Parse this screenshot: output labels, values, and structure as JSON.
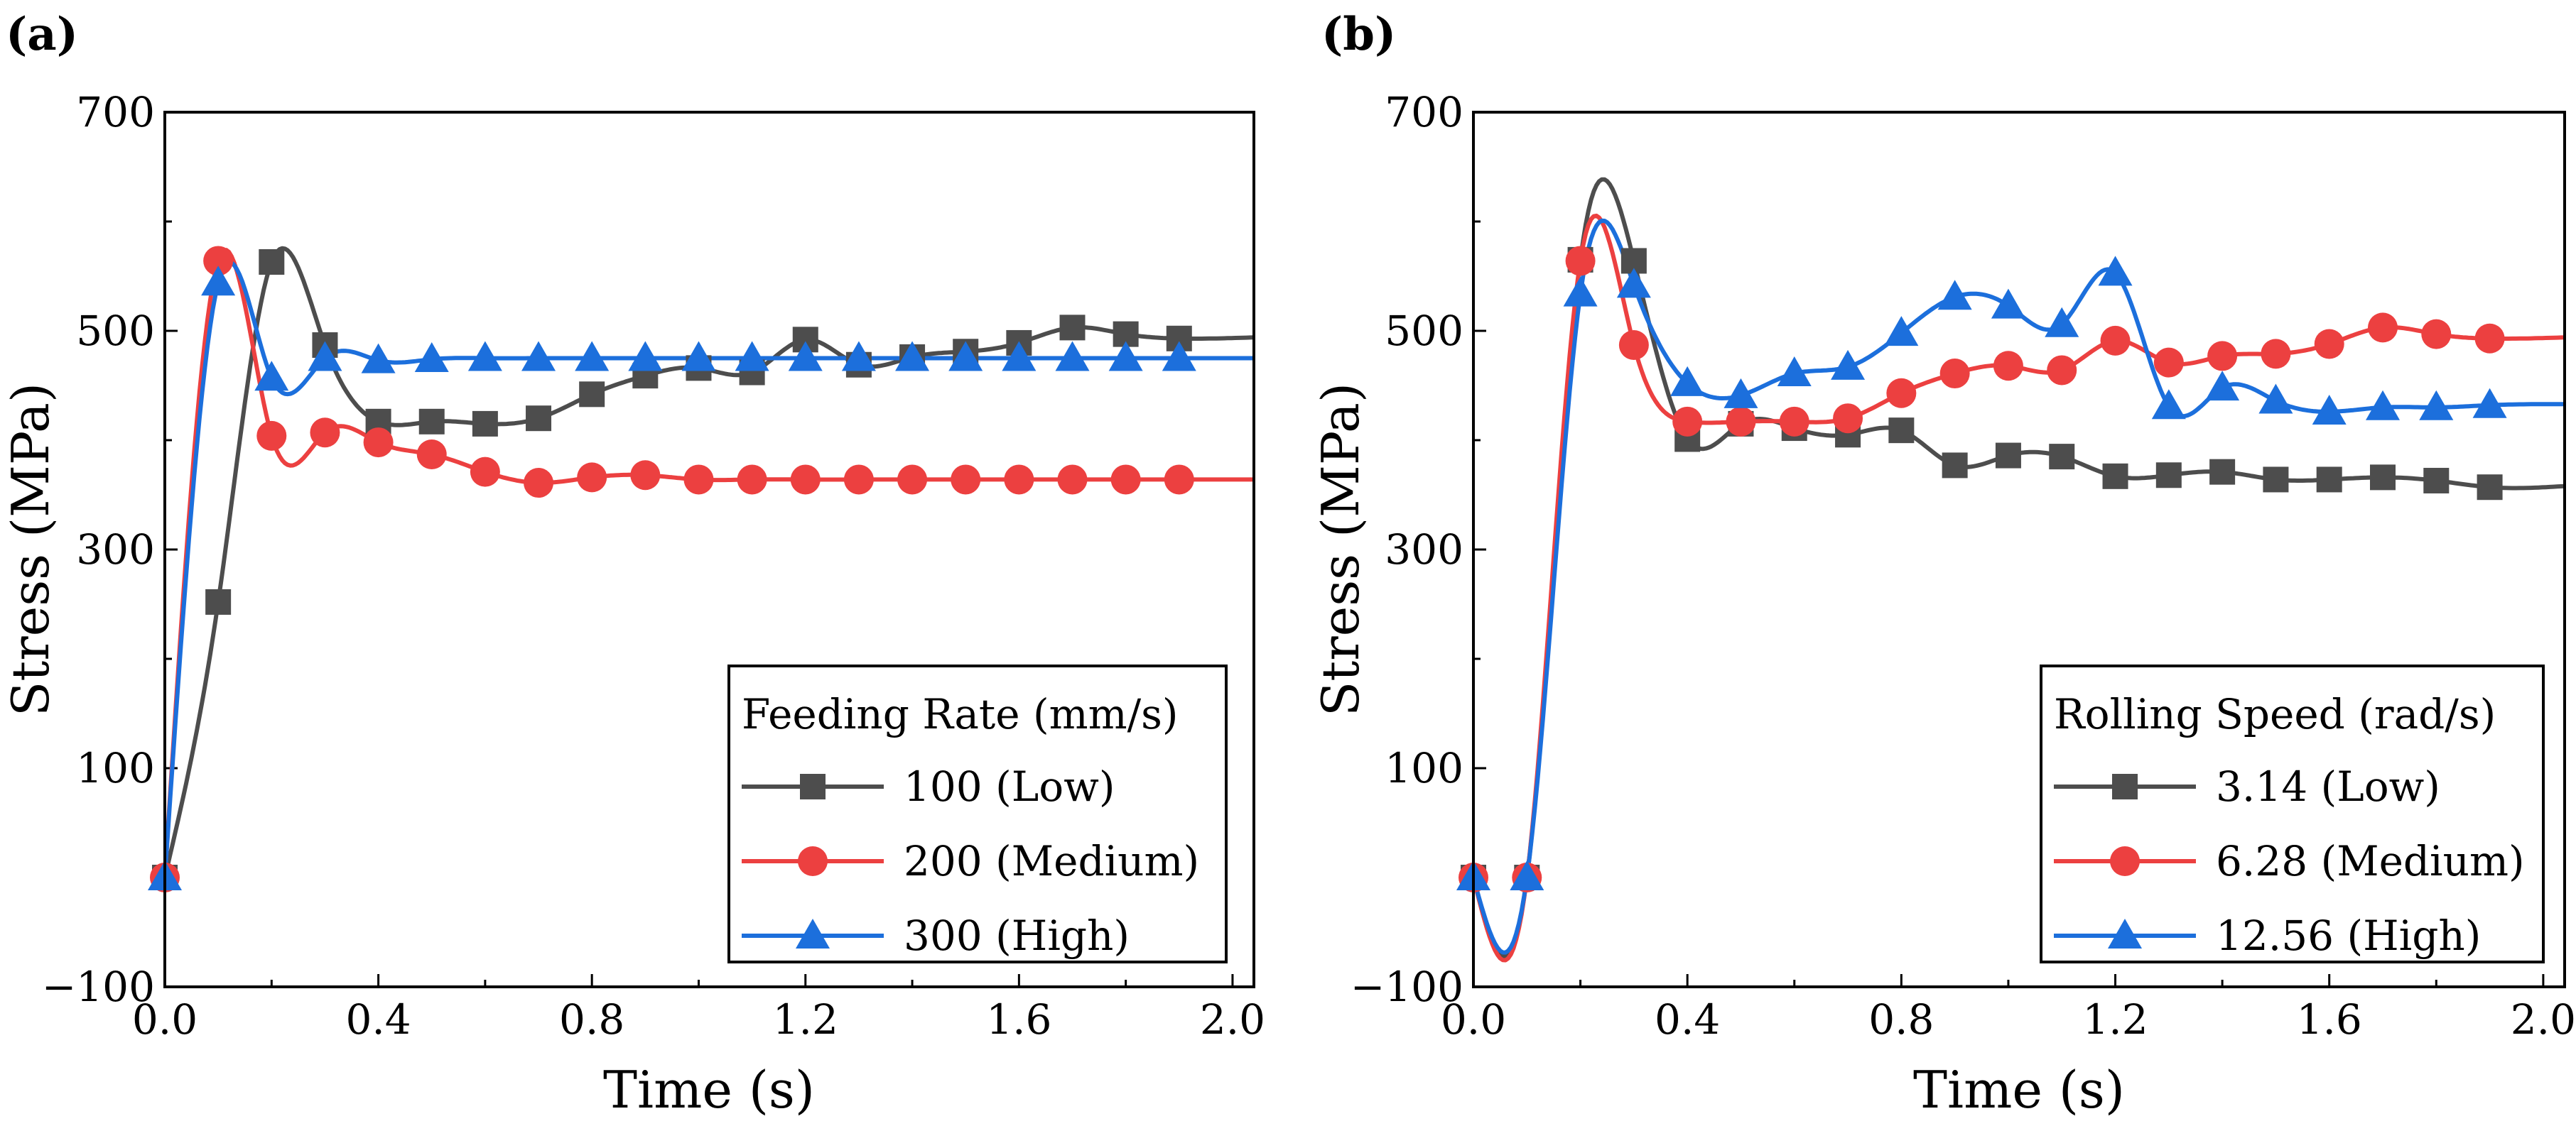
{
  "chart_data": [
    {
      "type": "line",
      "panel_label": "(a)",
      "xlabel": "Time (s)",
      "ylabel": "Stress (MPa)",
      "xlim": [
        0.0,
        2.04
      ],
      "ylim": [
        -100,
        700
      ],
      "xticks": [
        "0.0",
        "0.4",
        "0.8",
        "1.2",
        "1.6",
        "2.0"
      ],
      "xtick_values": [
        0.0,
        0.4,
        0.8,
        1.2,
        1.6,
        2.0
      ],
      "yticks": [
        "700",
        "500",
        "300",
        "100",
        "−100"
      ],
      "ytick_values": [
        700,
        500,
        300,
        100,
        -100
      ],
      "grid": false,
      "legend": {
        "title": "Feeding Rate (mm/s)",
        "placement": "bottom-right"
      },
      "x": [
        0.0,
        0.1,
        0.2,
        0.3,
        0.4,
        0.5,
        0.6,
        0.7,
        0.8,
        0.9,
        1.0,
        1.1,
        1.2,
        1.3,
        1.4,
        1.5,
        1.6,
        1.7,
        1.8,
        1.9,
        2.04
      ],
      "series": [
        {
          "name": "100 (Low)",
          "color": "#4d4d4d",
          "marker": "square",
          "values": [
            0,
            252,
            563,
            487,
            417,
            417,
            415,
            420,
            442,
            459,
            466,
            462,
            492,
            469,
            476,
            481,
            489,
            503,
            497,
            493,
            494
          ]
        },
        {
          "name": "200 (Medium)",
          "color": "#ec4040",
          "marker": "circle",
          "values": [
            0,
            564,
            404,
            407,
            398,
            387,
            371,
            361,
            366,
            368,
            364,
            364,
            364,
            364,
            364,
            364,
            364,
            364,
            364,
            364,
            364
          ]
        },
        {
          "name": "300 (High)",
          "color": "#1c6fdc",
          "marker": "triangle",
          "values": [
            0,
            544,
            457,
            475,
            473,
            474,
            475,
            475,
            475,
            475,
            475,
            475,
            475,
            475,
            475,
            475,
            475,
            475,
            475,
            475,
            475
          ]
        }
      ]
    },
    {
      "type": "line",
      "panel_label": "(b)",
      "xlabel": "Time (s)",
      "ylabel": "Stress (MPa)",
      "xlim": [
        0.0,
        2.04
      ],
      "ylim": [
        -100,
        700
      ],
      "xticks": [
        "0.0",
        "0.4",
        "0.8",
        "1.2",
        "1.6",
        "2.0"
      ],
      "xtick_values": [
        0.0,
        0.4,
        0.8,
        1.2,
        1.6,
        2.0
      ],
      "yticks": [
        "700",
        "500",
        "300",
        "100",
        "−100"
      ],
      "ytick_values": [
        700,
        500,
        300,
        100,
        -100
      ],
      "grid": false,
      "legend": {
        "title": "Rolling Speed (rad/s)",
        "placement": "bottom-right"
      },
      "x": [
        0.0,
        0.1,
        0.2,
        0.3,
        0.4,
        0.5,
        0.6,
        0.7,
        0.8,
        0.9,
        1.0,
        1.1,
        1.2,
        1.3,
        1.4,
        1.5,
        1.6,
        1.7,
        1.8,
        1.9,
        2.04
      ],
      "series": [
        {
          "name": "3.14 (Low)",
          "color": "#4d4d4d",
          "marker": "square",
          "values": [
            0,
            0,
            565,
            564,
            401,
            415,
            411,
            405,
            409,
            377,
            386,
            385,
            367,
            368,
            371,
            364,
            364,
            366,
            363,
            357,
            358
          ]
        },
        {
          "name": "6.28 (Medium)",
          "color": "#ec4040",
          "marker": "circle",
          "values": [
            0,
            0,
            564,
            487,
            417,
            417,
            417,
            420,
            443,
            461,
            468,
            464,
            491,
            471,
            477,
            479,
            488,
            503,
            497,
            493,
            494
          ]
        },
        {
          "name": "12.56 (High)",
          "color": "#1c6fdc",
          "marker": "triangle",
          "values": [
            0,
            0,
            534,
            542,
            452,
            441,
            461,
            467,
            498,
            531,
            523,
            506,
            553,
            431,
            448,
            436,
            426,
            430,
            430,
            432,
            433
          ]
        }
      ]
    }
  ]
}
